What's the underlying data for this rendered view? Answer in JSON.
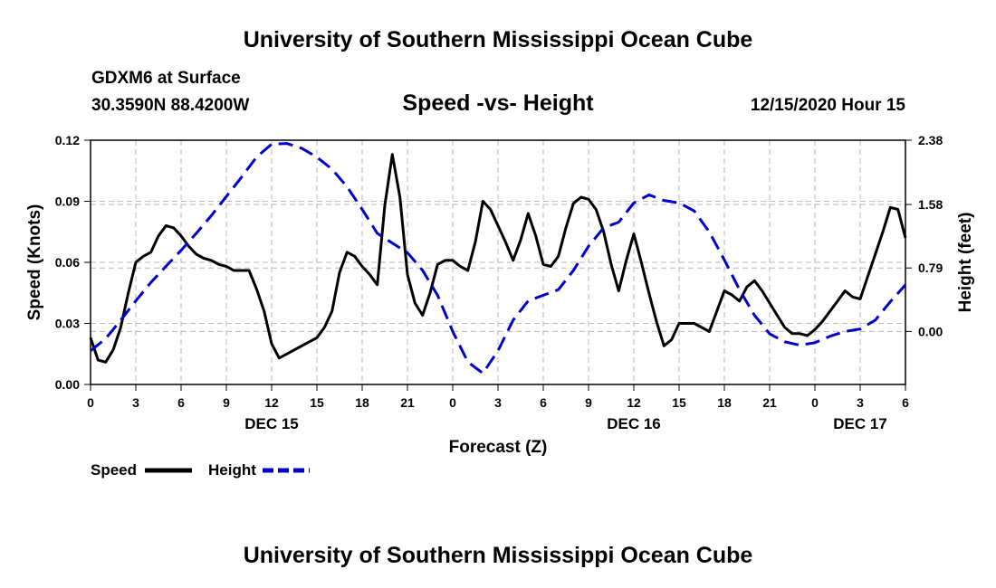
{
  "header": {
    "title": "University of Southern Mississippi Ocean Cube",
    "station": "GDXM6 at Surface",
    "location": "30.3590N 88.4200W",
    "plot_title": "Speed -vs- Height",
    "datetime": "12/15/2020 Hour 15"
  },
  "footer": {
    "title": "University of Southern Mississippi Ocean Cube"
  },
  "legend": {
    "items": [
      {
        "label": "Speed",
        "color": "#000000",
        "style": "solid"
      },
      {
        "label": "Height",
        "color": "#0000cc",
        "style": "dashed"
      }
    ]
  },
  "chart_data": {
    "type": "line",
    "title": "Speed -vs- Height",
    "xlabel": "Forecast (Z)",
    "ylabel_left": "Speed (Knots)",
    "ylabel_right": "Height (feet)",
    "x_range_hours": [
      0,
      54
    ],
    "x_tick_labels": [
      "0",
      "3",
      "6",
      "9",
      "12",
      "15",
      "18",
      "21",
      "0",
      "3",
      "6",
      "9",
      "12",
      "15",
      "18",
      "21",
      "0",
      "3",
      "6"
    ],
    "day_labels": [
      {
        "label": "DEC 15",
        "hour": 12
      },
      {
        "label": "DEC 16",
        "hour": 36
      },
      {
        "label": "DEC 17",
        "hour": 51
      }
    ],
    "ylim_left": [
      0,
      0.12
    ],
    "y_tick_labels_left": [
      "0.00",
      "0.03",
      "0.06",
      "0.09",
      "0.12"
    ],
    "ylim_right": [
      -0.66,
      2.38
    ],
    "y_ticks_right": [
      {
        "value": 0.0,
        "label": "0.00"
      },
      {
        "value": 0.79,
        "label": "0.79"
      },
      {
        "value": 1.58,
        "label": "1.58"
      },
      {
        "value": 2.38,
        "label": "2.38"
      }
    ],
    "grid": true,
    "series": [
      {
        "name": "Speed",
        "axis": "left",
        "color": "#000000",
        "x": [
          0,
          0.5,
          1,
          1.5,
          2,
          2.5,
          3,
          3.5,
          4,
          4.5,
          5,
          5.5,
          6,
          6.5,
          7,
          7.5,
          8,
          8.5,
          9,
          9.5,
          10,
          10.5,
          11,
          11.5,
          12,
          12.5,
          13,
          13.5,
          14,
          14.5,
          15,
          15.5,
          16,
          16.5,
          17,
          17.5,
          18,
          18.5,
          19,
          19.5,
          20,
          20.5,
          21,
          21.5,
          22,
          22.5,
          23,
          23.5,
          24,
          24.5,
          25,
          25.5,
          26,
          26.5,
          27,
          27.5,
          28,
          28.5,
          29,
          29.5,
          30,
          30.5,
          31,
          31.5,
          32,
          32.5,
          33,
          33.5,
          34,
          34.5,
          35,
          35.5,
          36,
          36.5,
          37,
          37.5,
          38,
          38.5,
          39,
          39.5,
          40,
          40.5,
          41,
          41.5,
          42,
          42.5,
          43,
          43.5,
          44,
          44.5,
          45,
          45.5,
          46,
          46.5,
          47,
          47.5,
          48,
          48.5,
          49,
          49.5,
          50,
          50.5,
          51,
          51.5,
          52,
          52.5,
          53,
          53.5,
          54
        ],
        "values": [
          0.023,
          0.012,
          0.011,
          0.017,
          0.028,
          0.045,
          0.06,
          0.063,
          0.065,
          0.073,
          0.078,
          0.077,
          0.073,
          0.068,
          0.064,
          0.062,
          0.061,
          0.059,
          0.058,
          0.056,
          0.056,
          0.056,
          0.047,
          0.036,
          0.02,
          0.013,
          0.015,
          0.017,
          0.019,
          0.021,
          0.023,
          0.028,
          0.036,
          0.055,
          0.065,
          0.063,
          0.058,
          0.054,
          0.049,
          0.088,
          0.113,
          0.092,
          0.054,
          0.04,
          0.034,
          0.045,
          0.059,
          0.061,
          0.061,
          0.058,
          0.056,
          0.07,
          0.09,
          0.086,
          0.078,
          0.07,
          0.061,
          0.071,
          0.084,
          0.073,
          0.059,
          0.058,
          0.063,
          0.077,
          0.089,
          0.092,
          0.091,
          0.086,
          0.075,
          0.059,
          0.046,
          0.061,
          0.074,
          0.06,
          0.045,
          0.031,
          0.019,
          0.022,
          0.03,
          0.03,
          0.03,
          0.028,
          0.026,
          0.036,
          0.046,
          0.044,
          0.041,
          0.048,
          0.051,
          0.046,
          0.04,
          0.034,
          0.028,
          0.025,
          0.025,
          0.024,
          0.027,
          0.031,
          0.036,
          0.041,
          0.046,
          0.043,
          0.042,
          0.053,
          0.064,
          0.075,
          0.087,
          0.086,
          0.072
        ]
      },
      {
        "name": "Height",
        "axis": "right",
        "color": "#0000cc",
        "x": [
          0,
          1,
          2,
          3,
          4,
          5,
          6,
          7,
          8,
          9,
          10,
          11,
          12,
          13,
          14,
          15,
          16,
          17,
          18,
          19,
          20,
          21,
          22,
          23,
          24,
          25,
          26,
          27,
          28,
          29,
          30,
          31,
          32,
          33,
          34,
          35,
          36,
          37,
          38,
          39,
          40,
          41,
          42,
          43,
          44,
          45,
          46,
          47,
          48,
          49,
          50,
          51,
          52,
          53,
          54
        ],
        "values": [
          -0.24,
          -0.09,
          0.14,
          0.38,
          0.61,
          0.81,
          1.01,
          1.22,
          1.44,
          1.68,
          1.92,
          2.17,
          2.33,
          2.34,
          2.28,
          2.17,
          2.02,
          1.8,
          1.52,
          1.22,
          1.1,
          0.98,
          0.76,
          0.45,
          0.0,
          -0.38,
          -0.52,
          -0.24,
          0.14,
          0.38,
          0.45,
          0.52,
          0.76,
          1.06,
          1.29,
          1.36,
          1.6,
          1.7,
          1.63,
          1.6,
          1.5,
          1.24,
          0.89,
          0.52,
          0.2,
          -0.03,
          -0.13,
          -0.17,
          -0.14,
          -0.06,
          0.0,
          0.03,
          0.14,
          0.37,
          0.58
        ]
      }
    ]
  }
}
